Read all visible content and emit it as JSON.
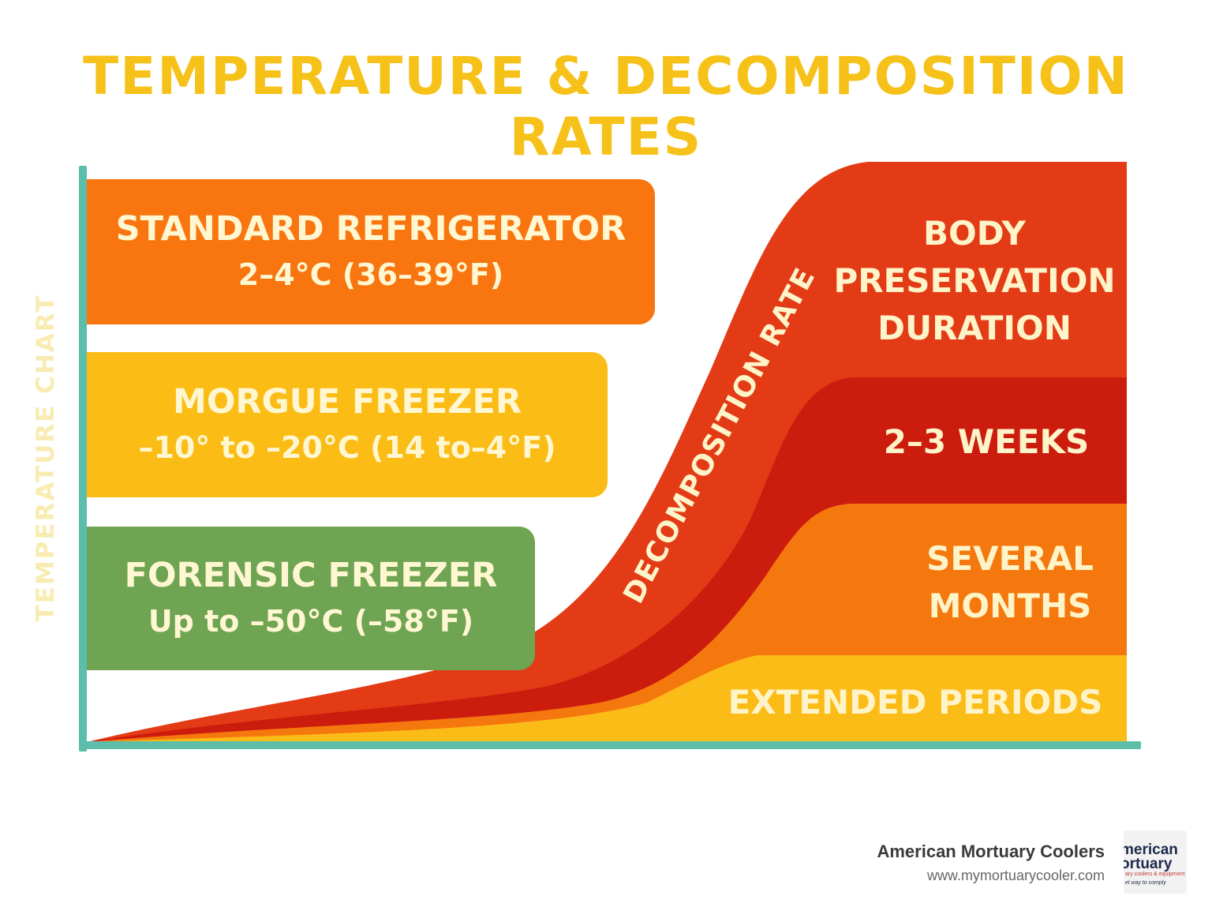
{
  "title": "TEMPERATURE & DECOMPOSITION RATES",
  "y_axis_label": "TEMPERATURE CHART",
  "chart_data": {
    "type": "area",
    "title": "TEMPERATURE & DECOMPOSITION RATES",
    "ylabel": "TEMPERATURE CHART",
    "curve_label": "DECOMPOSITION RATE",
    "storage_types": [
      {
        "name": "STANDARD REFRIGERATOR",
        "range": "2–4°C (36–39°F)",
        "color": "#f8750f"
      },
      {
        "name": "MORGUE FREEZER",
        "range": "–10° to –20°C (14 to–4°F)",
        "color": "#fbbc15"
      },
      {
        "name": "FORENSIC FREEZER",
        "range": "Up to –50°C (–58°F)",
        "color": "#6ea452"
      }
    ],
    "preservation_header": "BODY PRESERVATION DURATION",
    "preservation_header_lines": [
      "BODY",
      "PRESERVATION",
      "DURATION"
    ],
    "durations": [
      {
        "label_lines": [
          "2–3 WEEKS"
        ],
        "color": "#cc1c0e"
      },
      {
        "label_lines": [
          "SEVERAL",
          "MONTHS"
        ],
        "color": "#f5780e"
      },
      {
        "label_lines": [
          "EXTENDED PERIODS"
        ],
        "color": "#fbbc18"
      }
    ],
    "colors": {
      "axis": "#5bbdaa",
      "decomposition_band": "#e23b16",
      "title": "#f6c21a"
    }
  },
  "footer": {
    "company": "American Mortuary Coolers",
    "url": "www.mymortuarycooler.com",
    "logo_line1": "merican",
    "logo_line2": "ortuary",
    "logo_line3": "ary coolers & equipment",
    "logo_line4": "el way to comply"
  }
}
